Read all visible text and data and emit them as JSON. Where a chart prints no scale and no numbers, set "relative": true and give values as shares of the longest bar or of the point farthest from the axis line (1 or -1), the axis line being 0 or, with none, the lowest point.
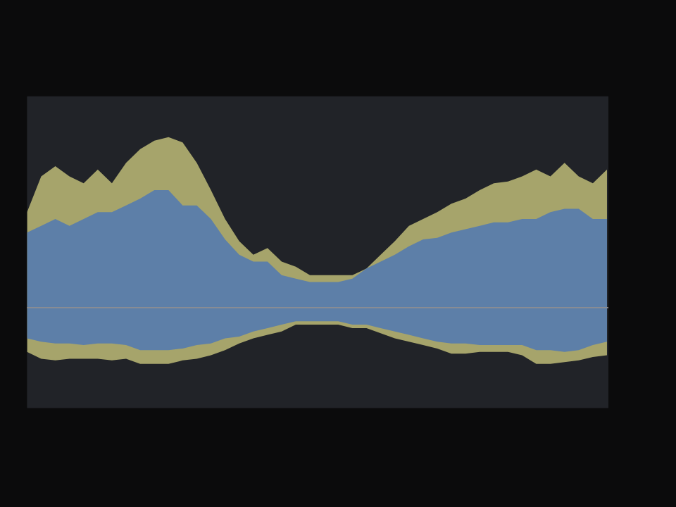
{
  "chart_data": {
    "type": "area",
    "relative": true,
    "legend": false,
    "grid": false,
    "categories": [
      null,
      null,
      null,
      null,
      null,
      null,
      null,
      null,
      null,
      null,
      null,
      null,
      null,
      null,
      null,
      null,
      null,
      null,
      null,
      null,
      null,
      null,
      null,
      null,
      null,
      null,
      null,
      null,
      null,
      null,
      null,
      null,
      null,
      null,
      null,
      null,
      null,
      null,
      null,
      null,
      null,
      null
    ],
    "series": [
      {
        "color": "#a6a46b",
        "values": [
          0.56,
          0.77,
          0.83,
          0.77,
          0.73,
          0.81,
          0.73,
          0.85,
          0.93,
          0.98,
          1.0,
          0.97,
          0.85,
          0.69,
          0.52,
          0.39,
          0.31,
          0.35,
          0.27,
          0.24,
          0.19,
          0.19,
          0.19,
          0.19,
          0.23,
          0.31,
          0.39,
          0.48,
          0.52,
          0.56,
          0.61,
          0.64,
          0.69,
          0.73,
          0.74,
          0.77,
          0.81,
          0.77,
          0.85,
          0.77,
          0.73,
          0.81
        ]
      },
      {
        "color": "#5d7fa8",
        "values": [
          0.44,
          0.48,
          0.52,
          0.48,
          0.52,
          0.56,
          0.56,
          0.6,
          0.64,
          0.69,
          0.69,
          0.6,
          0.6,
          0.52,
          0.4,
          0.31,
          0.27,
          0.27,
          0.19,
          0.17,
          0.15,
          0.15,
          0.15,
          0.17,
          0.23,
          0.27,
          0.31,
          0.36,
          0.4,
          0.41,
          0.44,
          0.46,
          0.48,
          0.5,
          0.5,
          0.52,
          0.52,
          0.56,
          0.58,
          0.58,
          0.52,
          0.52
        ]
      },
      {
        "color": "#a6a46b",
        "values": [
          -0.26,
          -0.3,
          -0.31,
          -0.3,
          -0.3,
          -0.3,
          -0.31,
          -0.3,
          -0.33,
          -0.33,
          -0.33,
          -0.31,
          -0.3,
          -0.28,
          -0.25,
          -0.21,
          -0.18,
          -0.16,
          -0.14,
          -0.1,
          -0.1,
          -0.1,
          -0.1,
          -0.12,
          -0.12,
          -0.15,
          -0.18,
          -0.2,
          -0.22,
          -0.24,
          -0.27,
          -0.27,
          -0.26,
          -0.26,
          -0.26,
          -0.28,
          -0.33,
          -0.33,
          -0.32,
          -0.31,
          -0.29,
          -0.28
        ]
      },
      {
        "color": "#5d7fa8",
        "values": [
          -0.18,
          -0.2,
          -0.21,
          -0.21,
          -0.22,
          -0.21,
          -0.21,
          -0.22,
          -0.25,
          -0.25,
          -0.25,
          -0.24,
          -0.22,
          -0.21,
          -0.18,
          -0.17,
          -0.14,
          -0.12,
          -0.1,
          -0.08,
          -0.08,
          -0.08,
          -0.08,
          -0.1,
          -0.1,
          -0.12,
          -0.14,
          -0.16,
          -0.18,
          -0.2,
          -0.21,
          -0.21,
          -0.22,
          -0.22,
          -0.22,
          -0.22,
          -0.25,
          -0.25,
          -0.26,
          -0.25,
          -0.22,
          -0.2
        ]
      }
    ]
  }
}
